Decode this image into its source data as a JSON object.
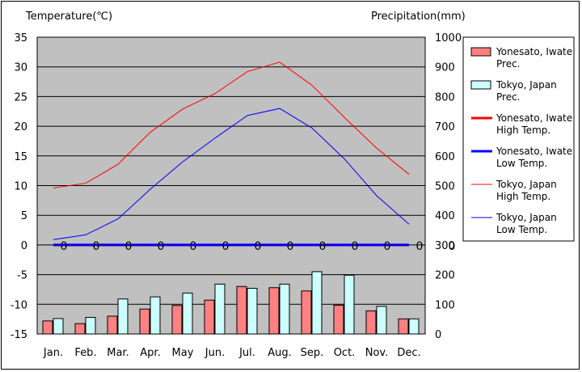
{
  "chart_data": {
    "type": "bar+line",
    "y_left_label": "Temperature(℃)",
    "y_right_label": "Precipitation(mm)",
    "ylim_left": [
      -15,
      35
    ],
    "yticks_left": [
      "35",
      "30",
      "25",
      "20",
      "15",
      "10",
      "5",
      "0",
      "-5",
      "-10",
      "-15"
    ],
    "ylim_right": [
      0,
      1000
    ],
    "yticks_right": [
      "1000",
      "900",
      "800",
      "700",
      "600",
      "500",
      "400",
      "300",
      "200",
      "100",
      "0"
    ],
    "categories": [
      "Jan.",
      "Feb.",
      "Mar.",
      "Apr.",
      "May",
      "Jun.",
      "Jul.",
      "Aug.",
      "Sep.",
      "Oct.",
      "Nov.",
      "Dec."
    ],
    "grid": true,
    "legend_position": "right",
    "bar_series": [
      {
        "name_line1": "Yonesato, Iwate",
        "name_line2": "Prec.",
        "color": "#ff8080",
        "values": [
          44,
          35,
          60,
          84,
          96,
          114,
          160,
          156,
          145,
          97,
          78,
          51
        ]
      },
      {
        "name_line1": "Tokyo, Japan",
        "name_line2": "Prec.",
        "color": "#ccffff",
        "values": [
          52,
          56,
          118,
          125,
          138,
          168,
          154,
          168,
          210,
          198,
          93,
          51
        ]
      }
    ],
    "line_series": [
      {
        "name_line1": "Yonesato, Iwate",
        "name_line2": "High Temp.",
        "color": "#ff0000",
        "width": 3,
        "values": [
          0,
          0,
          0,
          0,
          0,
          0,
          0,
          0,
          0,
          0,
          0,
          0
        ]
      },
      {
        "name_line1": "Yonesato, Iwate",
        "name_line2": "Low Temp.",
        "color": "#0000ff",
        "width": 3,
        "values": [
          0,
          0,
          0,
          0,
          0,
          0,
          0,
          0,
          0,
          0,
          0,
          0
        ]
      },
      {
        "name_line1": "Tokyo, Japan",
        "name_line2": "High Temp.",
        "color": "#ff0000",
        "width": 1,
        "values": [
          9.6,
          10.4,
          13.6,
          19.0,
          22.9,
          25.5,
          29.2,
          30.8,
          26.9,
          21.5,
          16.3,
          11.9
        ]
      },
      {
        "name_line1": "Tokyo, Japan",
        "name_line2": "Low Temp.",
        "color": "#0000ff",
        "width": 1,
        "values": [
          0.9,
          1.7,
          4.4,
          9.4,
          14.0,
          18.0,
          21.8,
          23.0,
          19.7,
          14.5,
          8.3,
          3.5
        ]
      }
    ],
    "zero_labels": [
      "0",
      "0",
      "0",
      "0",
      "0",
      "0",
      "0",
      "0",
      "0",
      "0",
      "0",
      "0",
      "0"
    ]
  }
}
